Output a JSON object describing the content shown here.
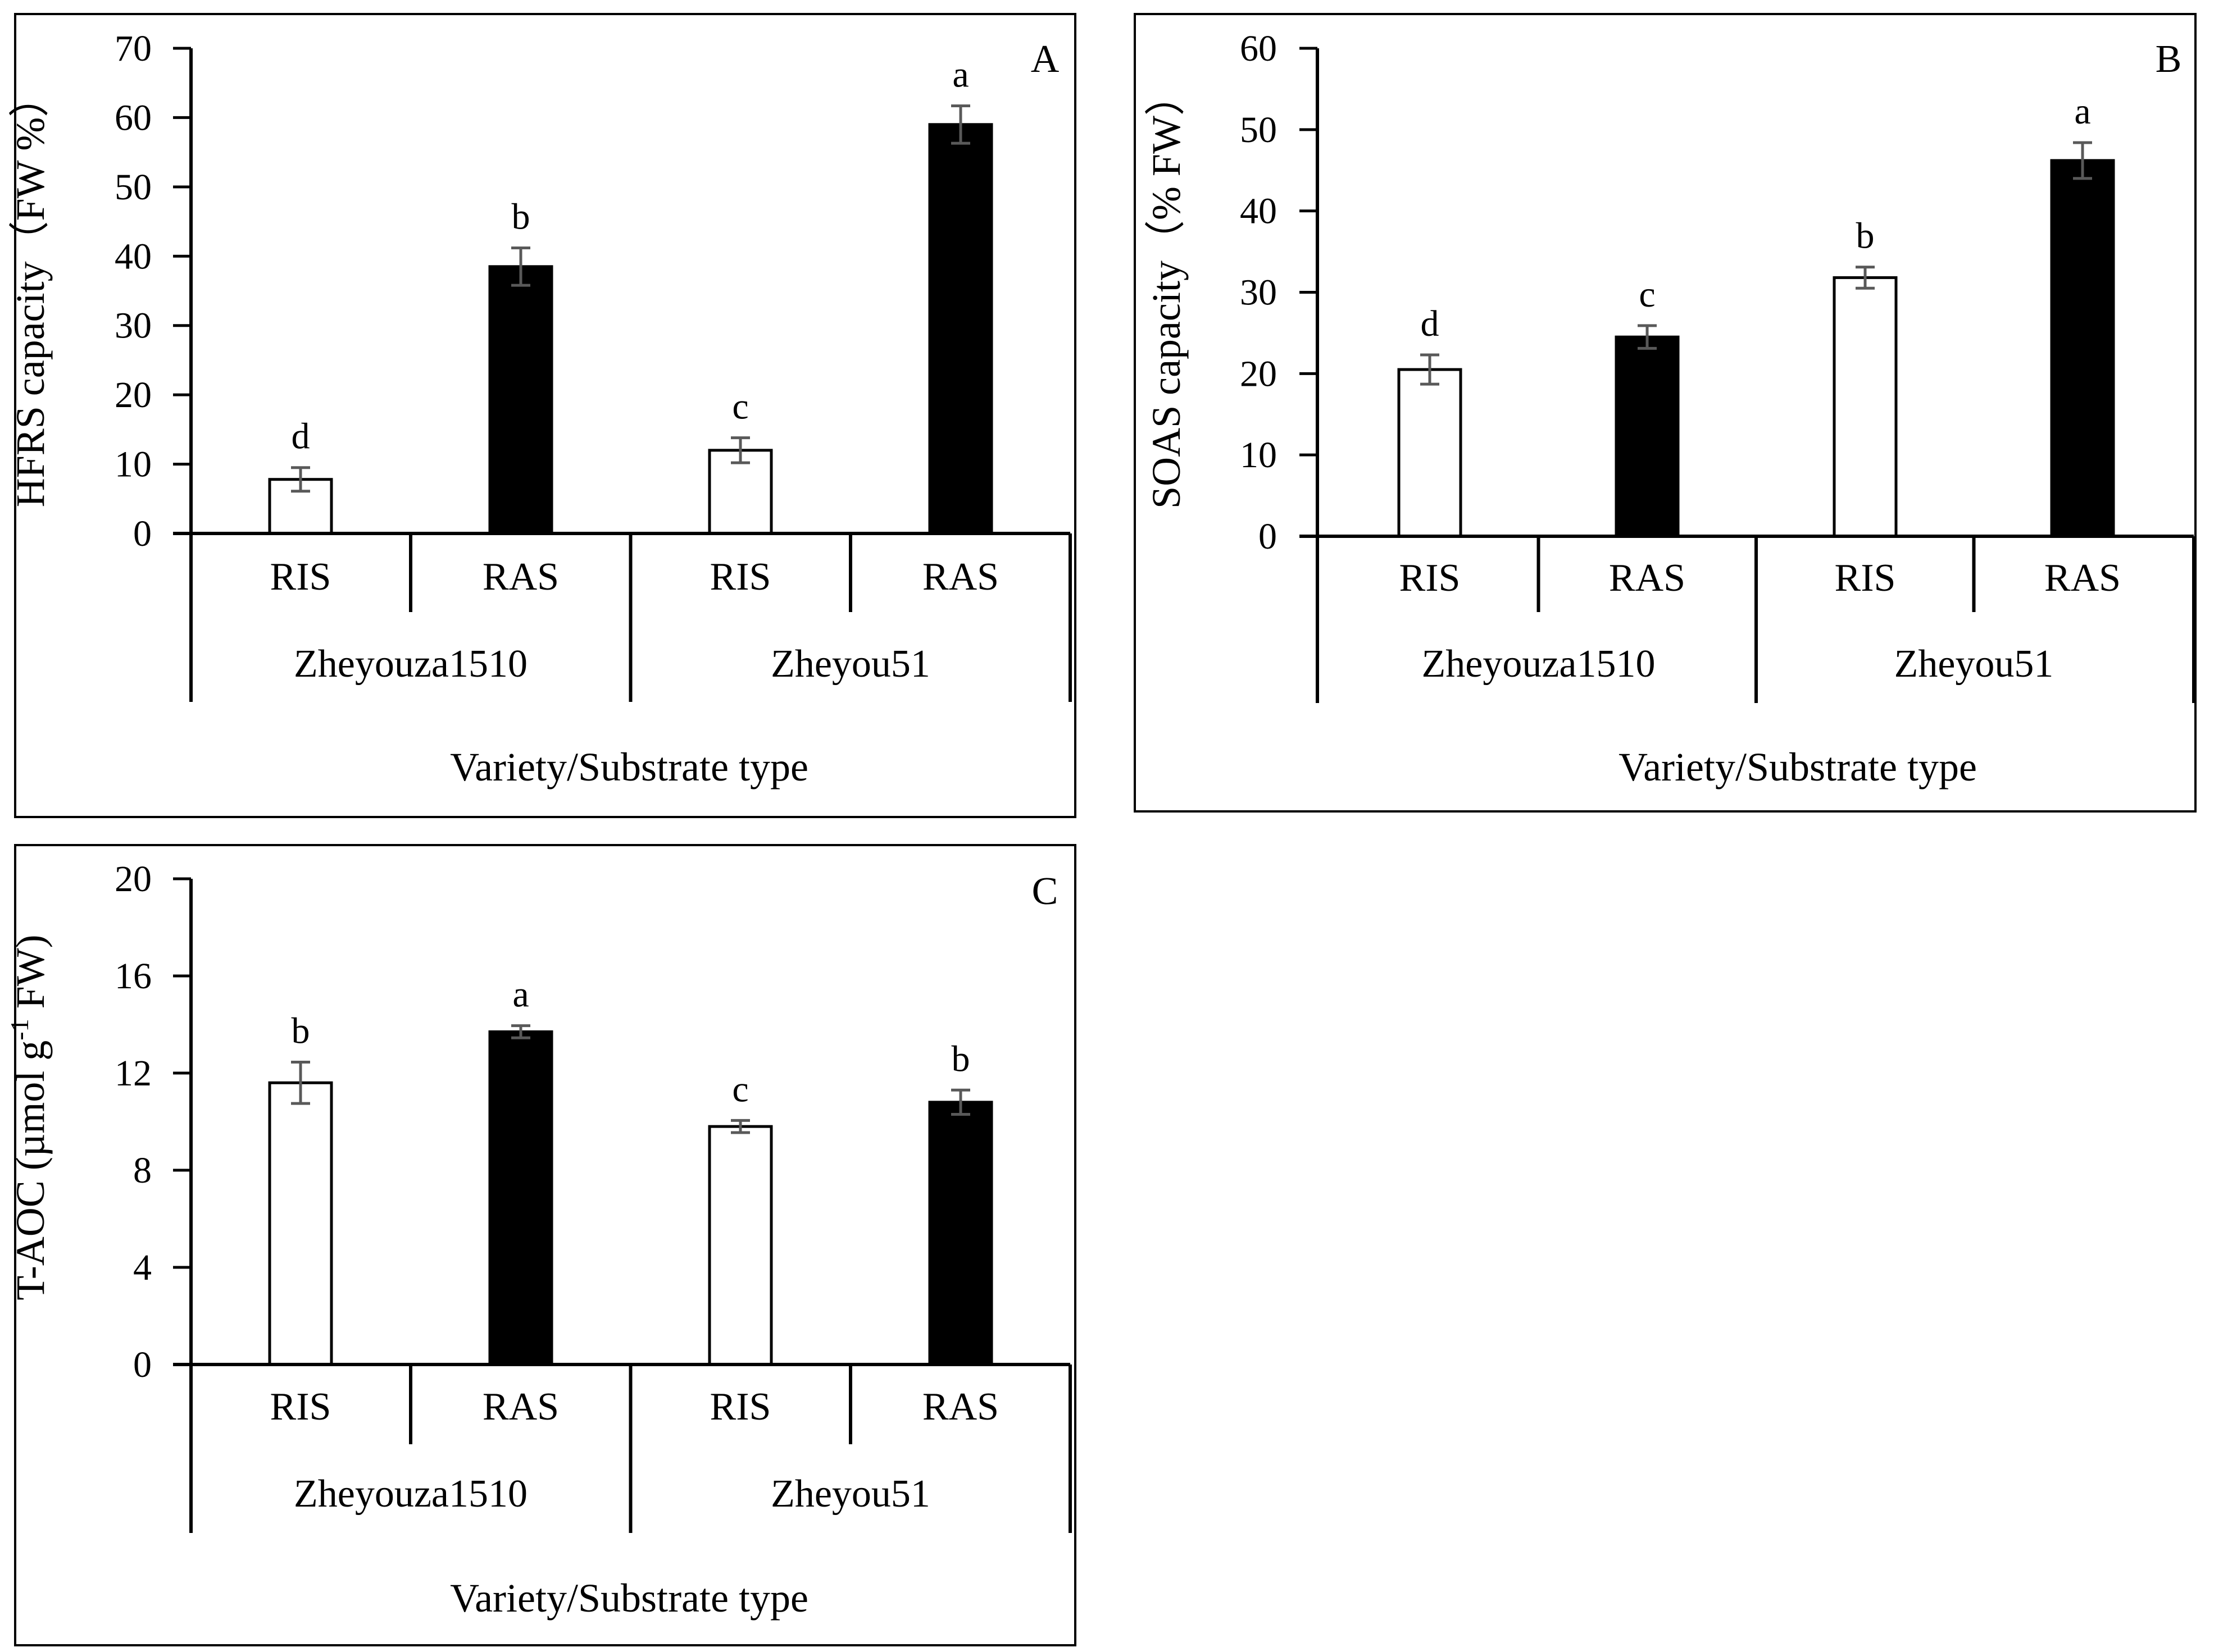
{
  "colors": {
    "ris_fill": "#ffffff",
    "ras_fill": "#000000",
    "axis": "#000000",
    "error_bar": "#595959",
    "frame": "#000000"
  },
  "chart_data": [
    {
      "panel": "A",
      "type": "bar",
      "ylabel": "HFRS capacity（FW %）",
      "xlabel": "Variety/Substrate type",
      "ylim": [
        0,
        70
      ],
      "yticks": [
        0,
        10,
        20,
        30,
        40,
        50,
        60,
        70
      ],
      "groups": [
        "Zheyouza1510",
        "Zheyou51"
      ],
      "categories": [
        "RIS",
        "RAS",
        "RIS",
        "RAS"
      ],
      "values": [
        7.8,
        38.5,
        12.0,
        59.0
      ],
      "errors": [
        1.7,
        2.7,
        1.8,
        2.7
      ],
      "letters": [
        "d",
        "b",
        "c",
        "a"
      ]
    },
    {
      "panel": "B",
      "type": "bar",
      "ylabel": "SOAS capacity（% FW）",
      "xlabel": "Variety/Substrate type",
      "ylim": [
        0,
        60
      ],
      "yticks": [
        0,
        10,
        20,
        30,
        40,
        50,
        60
      ],
      "groups": [
        "Zheyouza1510",
        "Zheyou51"
      ],
      "categories": [
        "RIS",
        "RAS",
        "RIS",
        "RAS"
      ],
      "values": [
        20.5,
        24.5,
        31.8,
        46.2
      ],
      "errors": [
        1.8,
        1.4,
        1.3,
        2.2
      ],
      "letters": [
        "d",
        "c",
        "b",
        "a"
      ]
    },
    {
      "panel": "C",
      "type": "bar",
      "ylabel_parts": [
        "T-AOC (µmol g",
        "-1",
        " FW)"
      ],
      "xlabel": "Variety/Substrate type",
      "ylim": [
        0,
        20
      ],
      "yticks": [
        0,
        4,
        8,
        12,
        16,
        20
      ],
      "groups": [
        "Zheyouza1510",
        "Zheyou51"
      ],
      "categories": [
        "RIS",
        "RAS",
        "RIS",
        "RAS"
      ],
      "values": [
        11.6,
        13.7,
        9.8,
        10.8
      ],
      "errors": [
        0.85,
        0.25,
        0.25,
        0.5
      ],
      "letters": [
        "b",
        "a",
        "c",
        "b"
      ]
    }
  ]
}
